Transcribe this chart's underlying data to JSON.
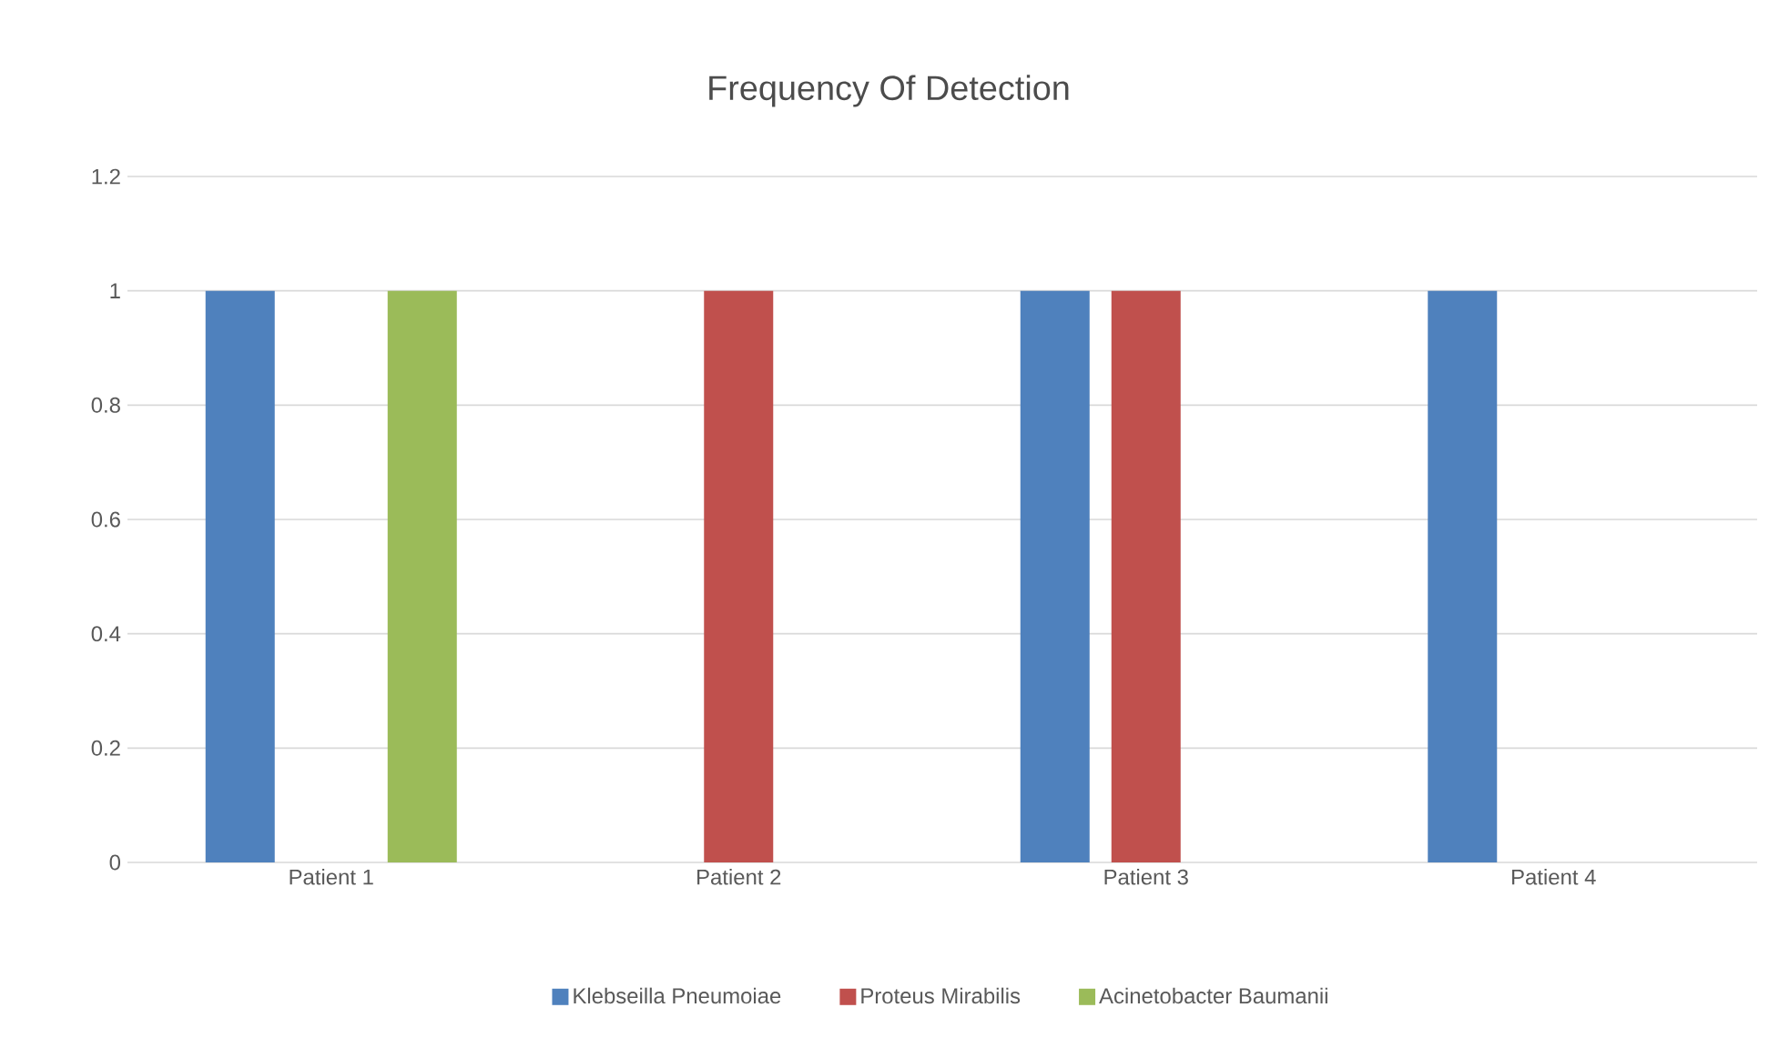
{
  "chart_data": {
    "type": "bar",
    "title": "Frequency Of Detection",
    "categories": [
      "Patient 1",
      "Patient 2",
      "Patient 3",
      "Patient 4"
    ],
    "series": [
      {
        "name": "Klebseilla Pneumoiae",
        "color": "#4f81bd",
        "values": [
          1,
          0,
          1,
          1
        ]
      },
      {
        "name": "Proteus Mirabilis",
        "color": "#c0504d",
        "values": [
          0,
          1,
          1,
          0
        ]
      },
      {
        "name": "Acinetobacter Baumanii",
        "color": "#9bbb59",
        "values": [
          1,
          0,
          0,
          0
        ]
      }
    ],
    "ylim": [
      0,
      1.2
    ],
    "yticks": [
      0,
      0.2,
      0.4,
      0.6,
      0.8,
      1,
      1.2
    ],
    "grid": "y",
    "legend": "bottom"
  }
}
